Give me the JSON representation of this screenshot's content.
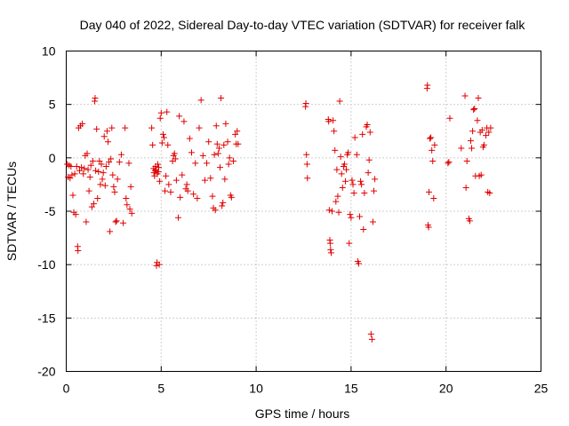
{
  "chart_data": {
    "type": "scatter",
    "title": "Day 040 of 2022, Sidereal Day-to-day VTEC variation (SDTVAR) for receiver falk",
    "xlabel": "GPS time / hours",
    "ylabel": "SDTVAR / TECUs",
    "xlim": [
      0,
      25
    ],
    "ylim": [
      -20,
      10
    ],
    "xticks": [
      0,
      5,
      10,
      15,
      20,
      25
    ],
    "yticks": [
      10,
      5,
      0,
      -5,
      -10,
      -15,
      -20
    ],
    "grid": true,
    "marker": "+",
    "color": "#e00000",
    "series": [
      {
        "name": "falk",
        "points": [
          [
            0.05,
            -0.6
          ],
          [
            0.1,
            -1.8
          ],
          [
            0.15,
            -0.7
          ],
          [
            0.2,
            -1.9
          ],
          [
            0.25,
            -0.8
          ],
          [
            0.3,
            -1.6
          ],
          [
            0.35,
            -3.5
          ],
          [
            0.4,
            -5.1
          ],
          [
            0.45,
            -1.5
          ],
          [
            0.5,
            -5.3
          ],
          [
            0.55,
            -0.8
          ],
          [
            0.6,
            -8.3
          ],
          [
            0.62,
            -8.7
          ],
          [
            0.65,
            2.8
          ],
          [
            0.7,
            -1.2
          ],
          [
            0.75,
            3.0
          ],
          [
            0.8,
            -0.9
          ],
          [
            0.85,
            3.2
          ],
          [
            0.9,
            -1.5
          ],
          [
            0.95,
            -1.0
          ],
          [
            1.0,
            0.2
          ],
          [
            1.05,
            -6.0
          ],
          [
            1.1,
            0.4
          ],
          [
            1.15,
            -1.1
          ],
          [
            1.2,
            -3.1
          ],
          [
            1.25,
            -1.8
          ],
          [
            1.3,
            -0.7
          ],
          [
            1.35,
            -4.6
          ],
          [
            1.4,
            -0.3
          ],
          [
            1.45,
            -4.3
          ],
          [
            1.5,
            5.3
          ],
          [
            1.52,
            5.6
          ],
          [
            1.55,
            -1.2
          ],
          [
            1.6,
            2.7
          ],
          [
            1.65,
            -3.8
          ],
          [
            1.7,
            -1.3
          ],
          [
            1.75,
            -0.3
          ],
          [
            1.8,
            -2.5
          ],
          [
            1.85,
            -0.6
          ],
          [
            1.9,
            -2.0
          ],
          [
            1.95,
            -1.4
          ],
          [
            2.0,
            2.0
          ],
          [
            2.05,
            -2.6
          ],
          [
            2.1,
            -0.8
          ],
          [
            2.15,
            2.5
          ],
          [
            2.2,
            1.5
          ],
          [
            2.25,
            -0.4
          ],
          [
            2.3,
            -6.9
          ],
          [
            2.35,
            -0.1
          ],
          [
            2.4,
            2.8
          ],
          [
            2.45,
            -1.6
          ],
          [
            2.5,
            -2.7
          ],
          [
            2.55,
            -3.2
          ],
          [
            2.6,
            -6.0
          ],
          [
            2.65,
            -5.9
          ],
          [
            2.7,
            -2.0
          ],
          [
            2.8,
            -0.4
          ],
          [
            2.9,
            0.3
          ],
          [
            3.0,
            -6.1
          ],
          [
            3.1,
            2.8
          ],
          [
            3.15,
            -3.8
          ],
          [
            3.2,
            -4.4
          ],
          [
            3.3,
            -0.5
          ],
          [
            3.35,
            -4.8
          ],
          [
            3.4,
            -2.7
          ],
          [
            3.45,
            -5.2
          ],
          [
            4.5,
            2.8
          ],
          [
            4.55,
            1.2
          ],
          [
            4.6,
            -1.0
          ],
          [
            4.62,
            -1.4
          ],
          [
            4.65,
            -1.7
          ],
          [
            4.68,
            -1.2
          ],
          [
            4.7,
            -0.8
          ],
          [
            4.72,
            -1.1
          ],
          [
            4.75,
            -10.1
          ],
          [
            4.78,
            -9.8
          ],
          [
            4.8,
            -1.5
          ],
          [
            4.82,
            -0.6
          ],
          [
            4.85,
            -1.3
          ],
          [
            4.87,
            -0.9
          ],
          [
            4.9,
            -10.0
          ],
          [
            4.92,
            -2.2
          ],
          [
            4.95,
            3.7
          ],
          [
            5.0,
            4.2
          ],
          [
            5.05,
            1.4
          ],
          [
            5.1,
            2.2
          ],
          [
            5.15,
            1.9
          ],
          [
            5.2,
            -3.1
          ],
          [
            5.25,
            -1.7
          ],
          [
            5.3,
            4.3
          ],
          [
            5.35,
            1.2
          ],
          [
            5.4,
            -2.5
          ],
          [
            5.5,
            -3.2
          ],
          [
            5.6,
            -0.3
          ],
          [
            5.65,
            0.2
          ],
          [
            5.7,
            0.4
          ],
          [
            5.75,
            -0.1
          ],
          [
            5.8,
            -2.1
          ],
          [
            5.9,
            -5.6
          ],
          [
            5.95,
            3.9
          ],
          [
            6.0,
            -3.7
          ],
          [
            6.1,
            -1.6
          ],
          [
            6.2,
            3.4
          ],
          [
            6.3,
            -2.9
          ],
          [
            6.35,
            -2.5
          ],
          [
            6.4,
            -3.1
          ],
          [
            6.5,
            1.8
          ],
          [
            6.6,
            0.5
          ],
          [
            6.7,
            -3.4
          ],
          [
            6.8,
            -0.5
          ],
          [
            6.9,
            -3.8
          ],
          [
            7.0,
            2.8
          ],
          [
            7.1,
            5.4
          ],
          [
            7.2,
            0.2
          ],
          [
            7.3,
            -2.1
          ],
          [
            7.4,
            -0.5
          ],
          [
            7.5,
            1.5
          ],
          [
            7.6,
            -1.9
          ],
          [
            7.7,
            -3.6
          ],
          [
            7.75,
            -4.7
          ],
          [
            7.8,
            0.3
          ],
          [
            7.85,
            -4.9
          ],
          [
            7.9,
            3.0
          ],
          [
            7.95,
            1.3
          ],
          [
            8.0,
            0.4
          ],
          [
            8.05,
            0.9
          ],
          [
            8.1,
            -0.9
          ],
          [
            8.15,
            5.6
          ],
          [
            8.2,
            -4.5
          ],
          [
            8.25,
            -4.2
          ],
          [
            8.3,
            1.2
          ],
          [
            8.35,
            -2.0
          ],
          [
            8.4,
            3.2
          ],
          [
            8.5,
            1.5
          ],
          [
            8.55,
            -0.6
          ],
          [
            8.6,
            0.0
          ],
          [
            8.65,
            -3.5
          ],
          [
            8.7,
            -3.7
          ],
          [
            8.8,
            -0.3
          ],
          [
            8.9,
            2.2
          ],
          [
            8.95,
            1.3
          ],
          [
            9.0,
            2.5
          ],
          [
            9.05,
            1.3
          ],
          [
            12.6,
            4.8
          ],
          [
            12.62,
            5.1
          ],
          [
            12.65,
            0.3
          ],
          [
            12.68,
            -0.6
          ],
          [
            12.7,
            -1.9
          ],
          [
            13.8,
            3.6
          ],
          [
            13.82,
            3.4
          ],
          [
            13.85,
            -4.9
          ],
          [
            13.88,
            -7.7
          ],
          [
            13.9,
            -8.0
          ],
          [
            13.92,
            -8.6
          ],
          [
            13.95,
            -8.9
          ],
          [
            14.0,
            -5.0
          ],
          [
            14.05,
            3.5
          ],
          [
            14.1,
            2.5
          ],
          [
            14.15,
            0.7
          ],
          [
            14.2,
            -4.1
          ],
          [
            14.25,
            -1.1
          ],
          [
            14.3,
            -3.6
          ],
          [
            14.35,
            -5.1
          ],
          [
            14.4,
            5.3
          ],
          [
            14.45,
            0.1
          ],
          [
            14.5,
            -1.5
          ],
          [
            14.55,
            -2.8
          ],
          [
            14.6,
            -0.8
          ],
          [
            14.65,
            -0.6
          ],
          [
            14.7,
            -2.2
          ],
          [
            14.75,
            -1.1
          ],
          [
            14.8,
            0.3
          ],
          [
            14.85,
            0.5
          ],
          [
            14.9,
            -8.0
          ],
          [
            14.95,
            -5.3
          ],
          [
            15.0,
            -5.6
          ],
          [
            15.05,
            -2.1
          ],
          [
            15.1,
            -2.5
          ],
          [
            15.15,
            -3.3
          ],
          [
            15.2,
            1.9
          ],
          [
            15.3,
            0.3
          ],
          [
            15.35,
            -9.7
          ],
          [
            15.4,
            -9.9
          ],
          [
            15.45,
            -5.5
          ],
          [
            15.5,
            -2.2
          ],
          [
            15.55,
            -2.5
          ],
          [
            15.6,
            2.2
          ],
          [
            15.65,
            -6.7
          ],
          [
            15.7,
            -3.3
          ],
          [
            15.8,
            2.9
          ],
          [
            15.85,
            3.1
          ],
          [
            15.9,
            -1.4
          ],
          [
            15.95,
            -0.2
          ],
          [
            16.0,
            2.4
          ],
          [
            16.05,
            -16.5
          ],
          [
            16.1,
            -17.0
          ],
          [
            16.15,
            -6.0
          ],
          [
            16.2,
            -3.1
          ],
          [
            16.25,
            -2.0
          ],
          [
            19.0,
            6.5
          ],
          [
            19.02,
            6.8
          ],
          [
            19.05,
            -6.3
          ],
          [
            19.08,
            -6.5
          ],
          [
            19.1,
            -3.2
          ],
          [
            19.15,
            1.8
          ],
          [
            19.2,
            1.9
          ],
          [
            19.25,
            0.7
          ],
          [
            19.3,
            -0.3
          ],
          [
            19.35,
            -3.8
          ],
          [
            19.4,
            1.2
          ],
          [
            20.1,
            -0.5
          ],
          [
            20.15,
            -0.4
          ],
          [
            20.2,
            3.7
          ],
          [
            20.8,
            0.9
          ],
          [
            21.0,
            5.8
          ],
          [
            21.05,
            -2.8
          ],
          [
            21.1,
            -0.3
          ],
          [
            21.2,
            -5.7
          ],
          [
            21.25,
            -5.9
          ],
          [
            21.3,
            1.6
          ],
          [
            21.35,
            0.9
          ],
          [
            21.4,
            2.5
          ],
          [
            21.45,
            4.5
          ],
          [
            21.5,
            4.6
          ],
          [
            21.55,
            -1.7
          ],
          [
            21.65,
            3.5
          ],
          [
            21.7,
            5.6
          ],
          [
            21.75,
            -1.7
          ],
          [
            21.8,
            2.4
          ],
          [
            21.85,
            -1.6
          ],
          [
            21.9,
            2.6
          ],
          [
            21.95,
            1.0
          ],
          [
            22.0,
            1.2
          ],
          [
            22.1,
            2.1
          ],
          [
            22.15,
            2.8
          ],
          [
            22.2,
            -3.2
          ],
          [
            22.25,
            2.4
          ],
          [
            22.3,
            -3.3
          ],
          [
            22.35,
            2.8
          ]
        ]
      }
    ]
  }
}
